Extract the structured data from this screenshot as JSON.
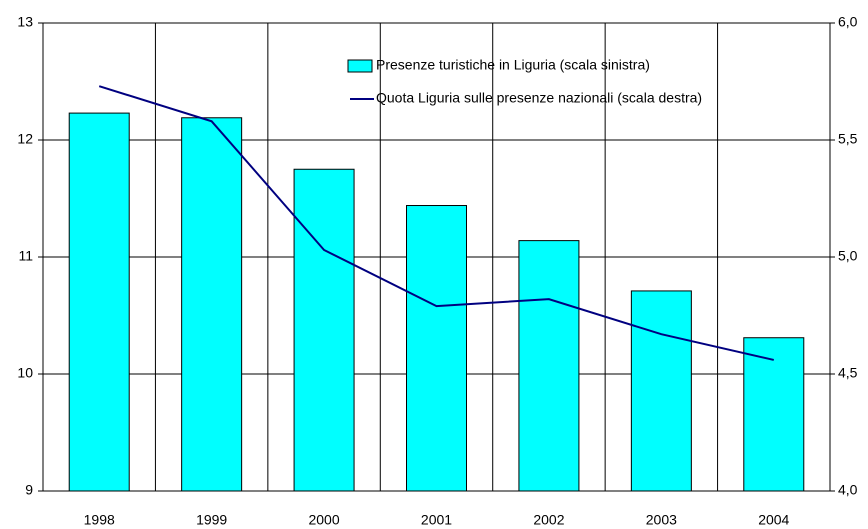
{
  "chart_data": {
    "type": "bar-line",
    "categories": [
      "1998",
      "1999",
      "2000",
      "2001",
      "2002",
      "2003",
      "2004"
    ],
    "series": [
      {
        "name": "Presenze turistiche in Liguria (scala sinistra)",
        "type": "bar",
        "color": "#00ffff",
        "values": [
          12.23,
          12.19,
          11.75,
          11.44,
          11.14,
          10.71,
          10.31
        ]
      },
      {
        "name": "Quota Liguria sulle presenze nazionali (scala destra)",
        "type": "line",
        "axis": "y2",
        "color": "#000080",
        "values": [
          5.73,
          5.58,
          5.03,
          4.79,
          4.82,
          4.67,
          4.56
        ]
      }
    ],
    "ylim": [
      9,
      13
    ],
    "yticks": [
      9,
      10,
      11,
      12,
      13
    ],
    "y2lim": [
      4,
      6
    ],
    "y2ticks": [
      {
        "value": 4,
        "label": "4,0"
      },
      {
        "value": 4.5,
        "label": "4,5"
      },
      {
        "value": 5,
        "label": "5,0"
      },
      {
        "value": 5.5,
        "label": "5,5"
      },
      {
        "value": 6,
        "label": "6,0"
      }
    ],
    "grid": true,
    "legend": "top-right"
  }
}
